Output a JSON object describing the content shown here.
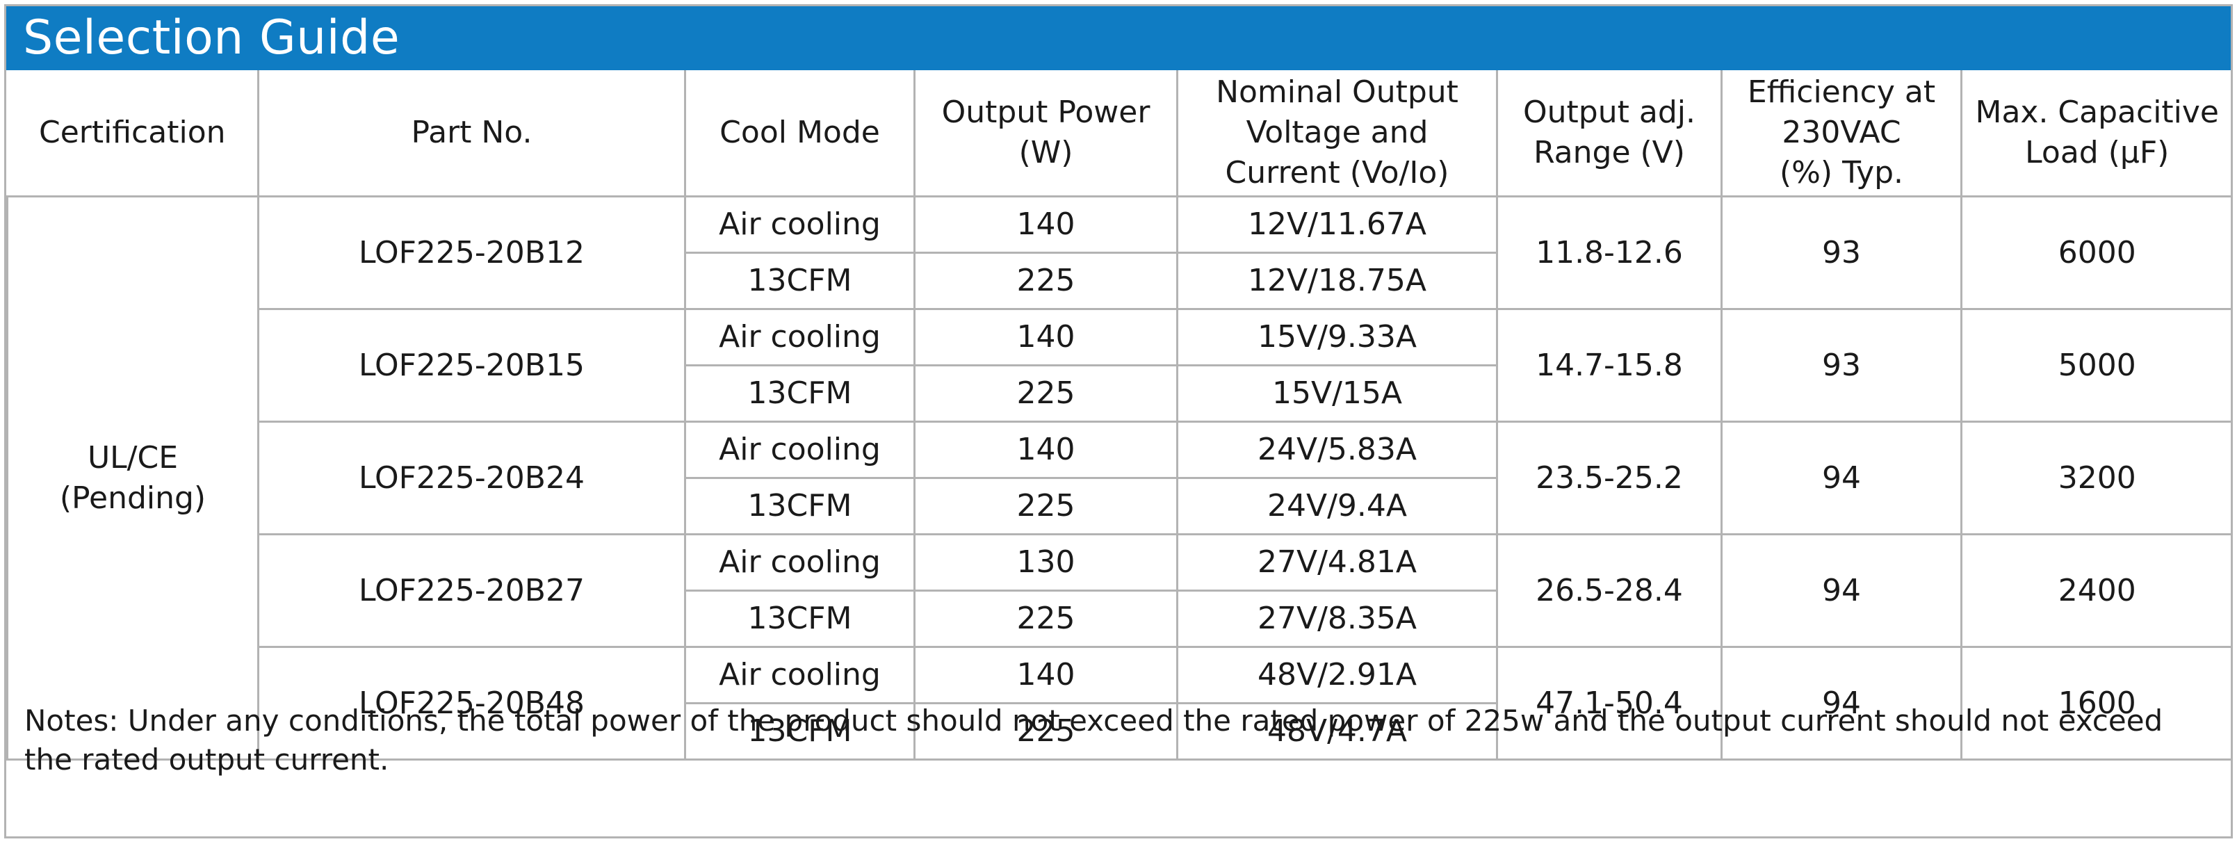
{
  "title": "Selection Guide",
  "headers": [
    [
      "Certification"
    ],
    [
      "Part No."
    ],
    [
      "Cool Mode"
    ],
    [
      "Output Power",
      "(W)"
    ],
    [
      "Nominal Output",
      "Voltage and",
      "Current (Vo/Io)"
    ],
    [
      "Output adj.",
      "Range (V)"
    ],
    [
      "Efficiency at",
      "230VAC",
      "(%) Typ."
    ],
    [
      "Max. Capacitive",
      "Load (µF)"
    ]
  ],
  "certification": [
    "UL/CE",
    "(Pending)"
  ],
  "models": [
    {
      "part_no": "LOF225-20B12",
      "cool_modes": [
        "Air cooling",
        "13CFM"
      ],
      "power": [
        "140",
        "225"
      ],
      "output": [
        "12V/11.67A",
        "12V/18.75A"
      ],
      "adj_range": "11.8-12.6",
      "efficiency": "93",
      "cap_load": "6000"
    },
    {
      "part_no": "LOF225-20B15",
      "cool_modes": [
        "Air cooling",
        "13CFM"
      ],
      "power": [
        "140",
        "225"
      ],
      "output": [
        "15V/9.33A",
        "15V/15A"
      ],
      "adj_range": "14.7-15.8",
      "efficiency": "93",
      "cap_load": "5000"
    },
    {
      "part_no": "LOF225-20B24",
      "cool_modes": [
        "Air cooling",
        "13CFM"
      ],
      "power": [
        "140",
        "225"
      ],
      "output": [
        "24V/5.83A",
        "24V/9.4A"
      ],
      "adj_range": "23.5-25.2",
      "efficiency": "94",
      "cap_load": "3200"
    },
    {
      "part_no": "LOF225-20B27",
      "cool_modes": [
        "Air cooling",
        "13CFM"
      ],
      "power": [
        "130",
        "225"
      ],
      "output": [
        "27V/4.81A",
        "27V/8.35A"
      ],
      "adj_range": "26.5-28.4",
      "efficiency": "94",
      "cap_load": "2400"
    },
    {
      "part_no": "LOF225-20B48",
      "cool_modes": [
        "Air cooling",
        "13CFM"
      ],
      "power": [
        "140",
        "225"
      ],
      "output": [
        "48V/2.91A",
        "48V/4.7A"
      ],
      "adj_range": "47.1-50.4",
      "efficiency": "94",
      "cap_load": "1600"
    }
  ],
  "notes": "Notes: Under any conditions, the total power of the product should not exceed the rated power of 225w and the output current should not exceed the rated output current.",
  "colors": {
    "title_bar": "#0f7cc3",
    "title_text": "#ffffff",
    "grid": "#b3b3b3",
    "text": "#1a1a1a"
  }
}
